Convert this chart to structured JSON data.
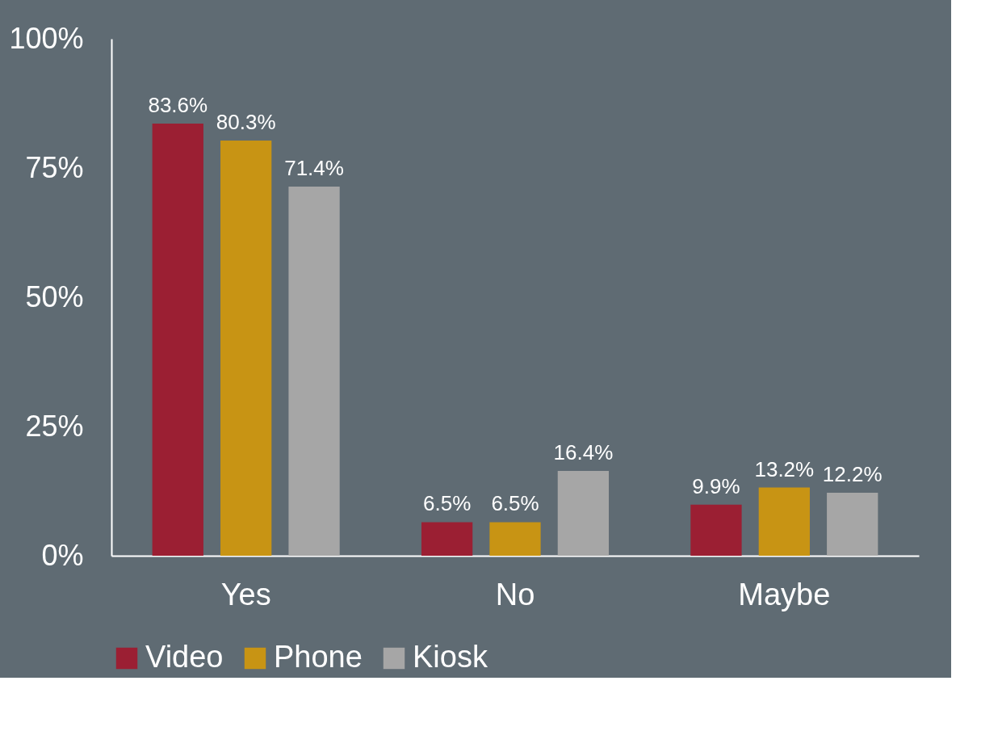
{
  "chart_data": {
    "type": "bar",
    "categories": [
      "Yes",
      "No",
      "Maybe"
    ],
    "series": [
      {
        "name": "Video",
        "color": "#9b1f33",
        "values": [
          83.6,
          6.5,
          9.9
        ],
        "value_labels": [
          "83.6%",
          "6.5%",
          "9.9%"
        ]
      },
      {
        "name": "Phone",
        "color": "#c89414",
        "values": [
          80.3,
          6.5,
          13.2
        ],
        "value_labels": [
          "80.3%",
          "6.5%",
          "13.2%"
        ]
      },
      {
        "name": "Kiosk",
        "color": "#a6a6a6",
        "values": [
          71.4,
          16.4,
          12.2
        ],
        "value_labels": [
          "71.4%",
          "16.4%",
          "12.2%"
        ]
      }
    ],
    "ylim": [
      0,
      100
    ],
    "yticks": [
      {
        "value": 0,
        "label": "0%"
      },
      {
        "value": 25,
        "label": "25%"
      },
      {
        "value": 50,
        "label": "50%"
      },
      {
        "value": 75,
        "label": "75%"
      },
      {
        "value": 100,
        "label": "100%"
      }
    ],
    "grid": false,
    "legend": "bottom"
  }
}
